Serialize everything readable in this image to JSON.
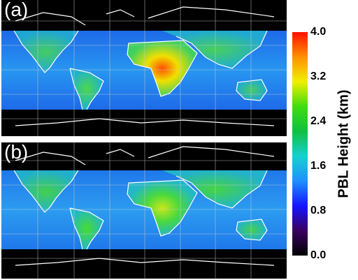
{
  "panels": [
    {
      "label": "(a)"
    },
    {
      "label": "(b)"
    }
  ],
  "colorbar": {
    "title": "PBL Height (km)",
    "ticks": [
      "4.0",
      "3.2",
      "2.4",
      "1.6",
      "0.8",
      "0.0"
    ],
    "range_km": [
      0.0,
      4.0
    ],
    "colors": [
      "#000000",
      "#3a0060",
      "#1414ff",
      "#1e90ff",
      "#18d0d0",
      "#10c040",
      "#3fdc10",
      "#f0f000",
      "#ff9000",
      "#ff1000"
    ]
  },
  "colors": {
    "ocean_low": "#1e64e6",
    "ocean_high": "#28a0f0",
    "land_mid": "#3cd260",
    "land_hot": "#f0e600",
    "land_peak": "#ff5000",
    "outline": "#ffffff",
    "background": "#000000"
  }
}
